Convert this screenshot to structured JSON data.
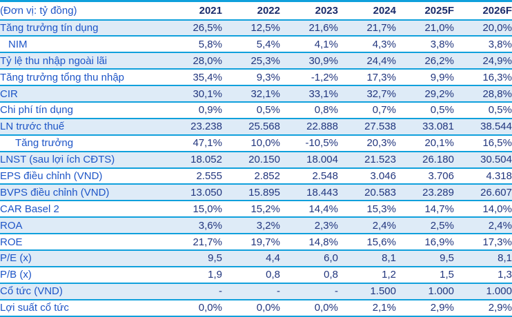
{
  "table": {
    "unit_label": "(Đơn vị: tỷ đồng)",
    "columns": [
      "2021",
      "2022",
      "2023",
      "2024",
      "2025F",
      "2026F"
    ],
    "rows": [
      {
        "label": "Tăng trưởng tín dụng",
        "indent": 0,
        "values": [
          "26,5%",
          "12,5%",
          "21,6%",
          "21,7%",
          "21,0%",
          "20,0%"
        ]
      },
      {
        "label": "NIM",
        "indent": 1,
        "values": [
          "5,8%",
          "5,4%",
          "4,1%",
          "4,3%",
          "3,8%",
          "3,8%"
        ]
      },
      {
        "label": "Tỷ lệ thu nhập ngoài lãi",
        "indent": 0,
        "values": [
          "28,0%",
          "25,3%",
          "30,9%",
          "24,4%",
          "26,2%",
          "24,9%"
        ]
      },
      {
        "label": "Tăng trưởng tổng thu nhập",
        "indent": 0,
        "values": [
          "35,4%",
          "9,3%",
          "-1,2%",
          "17,3%",
          "9,9%",
          "16,3%"
        ]
      },
      {
        "label": "CIR",
        "indent": 0,
        "values": [
          "30,1%",
          "32,1%",
          "33,1%",
          "32,7%",
          "29,2%",
          "28,8%"
        ]
      },
      {
        "label": "Chi phí tín dụng",
        "indent": 0,
        "values": [
          "0,9%",
          "0,5%",
          "0,8%",
          "0,7%",
          "0,5%",
          "0,5%"
        ]
      },
      {
        "label": "LN trước thuế",
        "indent": 0,
        "values": [
          "23.238",
          "25.568",
          "22.888",
          "27.538",
          "33.081",
          "38.544"
        ]
      },
      {
        "label": "Tăng trưởng",
        "indent": 2,
        "values": [
          "47,1%",
          "10,0%",
          "-10,5%",
          "20,3%",
          "20,1%",
          "16,5%"
        ]
      },
      {
        "label": "LNST (sau lợi ích CĐTS)",
        "indent": 0,
        "values": [
          "18.052",
          "20.150",
          "18.004",
          "21.523",
          "26.180",
          "30.504"
        ]
      },
      {
        "label": "EPS điều chỉnh (VND)",
        "indent": 0,
        "values": [
          "2.555",
          "2.852",
          "2.548",
          "3.046",
          "3.706",
          "4.318"
        ]
      },
      {
        "label": "BVPS điều chỉnh (VND)",
        "indent": 0,
        "values": [
          "13.050",
          "15.895",
          "18.443",
          "20.583",
          "23.289",
          "26.607"
        ]
      },
      {
        "label": "CAR Basel 2",
        "indent": 0,
        "values": [
          "15,0%",
          "15,2%",
          "14,4%",
          "15,3%",
          "14,7%",
          "14,0%"
        ]
      },
      {
        "label": "ROA",
        "indent": 0,
        "values": [
          "3,6%",
          "3,2%",
          "2,3%",
          "2,4%",
          "2,5%",
          "2,4%"
        ]
      },
      {
        "label": "ROE",
        "indent": 0,
        "values": [
          "21,7%",
          "19,7%",
          "14,8%",
          "15,6%",
          "16,9%",
          "17,3%"
        ]
      },
      {
        "label": "P/E (x)",
        "indent": 0,
        "values": [
          "9,5",
          "4,4",
          "6,0",
          "8,1",
          "9,5",
          "8,1"
        ]
      },
      {
        "label": "P/B (x)",
        "indent": 0,
        "values": [
          "1,9",
          "0,8",
          "0,8",
          "1,2",
          "1,5",
          "1,3"
        ]
      },
      {
        "label": "Cổ tức (VND)",
        "indent": 0,
        "values": [
          "-",
          "-",
          "-",
          "1.500",
          "1.000",
          "1.000"
        ]
      },
      {
        "label": "Lợi suất cổ tức",
        "indent": 0,
        "values": [
          "0,0%",
          "0,0%",
          "0,0%",
          "2,1%",
          "2,9%",
          "2,9%"
        ]
      }
    ],
    "colors": {
      "line": "#0FA0DC",
      "row_alt_bg": "#DEEBF7",
      "label_text": "#1E55C7",
      "value_text": "#22367E",
      "year_text": "#192B6B",
      "background": "#FFFFFF"
    }
  }
}
